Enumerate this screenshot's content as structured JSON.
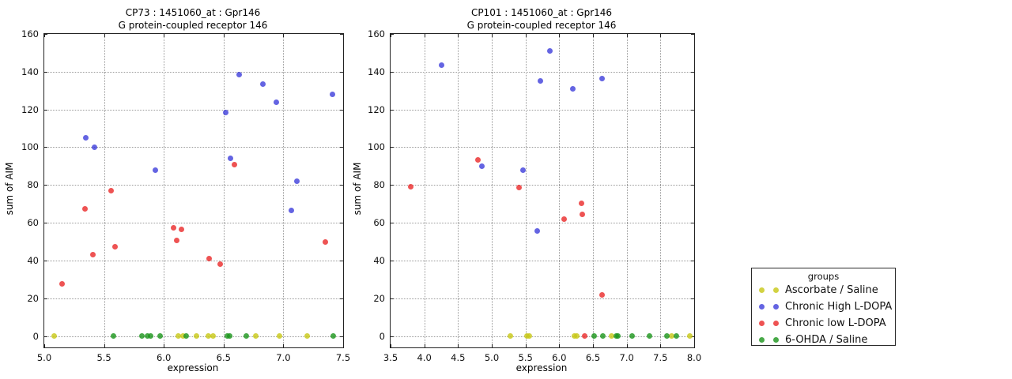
{
  "figure": {
    "background": "#ffffff"
  },
  "legend": {
    "title": "groups",
    "entries": [
      {
        "label": "Ascorbate / Saline",
        "color": "rgba(200,200,25,0.82)"
      },
      {
        "label": "Chronic High L-DOPA",
        "color": "rgba(40,40,215,0.72)"
      },
      {
        "label": "Chronic low L-DOPA",
        "color": "rgba(233,35,35,0.78)"
      },
      {
        "label": "6-OHDA / Saline",
        "color": "rgba(30,150,30,0.82)"
      }
    ]
  },
  "chart_data": [
    {
      "type": "scatter",
      "title_line1": "CP73 : 1451060_at : Gpr146",
      "title_line2": "G protein-coupled receptor 146",
      "xlabel": "expression",
      "ylabel": "sum of AIM",
      "xlim": [
        5.0,
        7.5
      ],
      "ylim": [
        0,
        160
      ],
      "xticks": [
        5.0,
        5.5,
        6.0,
        6.5,
        7.0,
        7.5
      ],
      "yticks": [
        0,
        20,
        40,
        60,
        80,
        100,
        120,
        140,
        160
      ],
      "grid": true,
      "series": [
        {
          "name": "Ascorbate / Saline",
          "color": "rgba(200,200,25,0.82)",
          "points": [
            [
              5.08,
              0
            ],
            [
              6.12,
              0
            ],
            [
              6.16,
              0
            ],
            [
              6.27,
              0
            ],
            [
              6.37,
              0
            ],
            [
              6.41,
              0
            ],
            [
              6.77,
              0
            ],
            [
              6.97,
              0
            ],
            [
              7.2,
              0
            ]
          ]
        },
        {
          "name": "Chronic High L-DOPA",
          "color": "rgba(40,40,215,0.72)",
          "points": [
            [
              5.35,
              105
            ],
            [
              5.42,
              100
            ],
            [
              5.93,
              88
            ],
            [
              6.52,
              118.5
            ],
            [
              6.56,
              94
            ],
            [
              6.63,
              138.5
            ],
            [
              6.83,
              133.5
            ],
            [
              6.94,
              124
            ],
            [
              7.07,
              66.5
            ],
            [
              7.11,
              82
            ],
            [
              7.41,
              128
            ]
          ]
        },
        {
          "name": "Chronic low L-DOPA",
          "color": "rgba(233,35,35,0.78)",
          "points": [
            [
              5.15,
              27.5
            ],
            [
              5.34,
              67.5
            ],
            [
              5.41,
              43
            ],
            [
              5.56,
              77
            ],
            [
              5.59,
              47.5
            ],
            [
              6.08,
              57.5
            ],
            [
              6.11,
              50.5
            ],
            [
              6.15,
              56.5
            ],
            [
              6.38,
              41
            ],
            [
              6.47,
              38
            ],
            [
              6.59,
              91
            ],
            [
              7.35,
              50
            ]
          ]
        },
        {
          "name": "6-OHDA / Saline",
          "color": "rgba(30,150,30,0.82)",
          "points": [
            [
              5.58,
              0
            ],
            [
              5.82,
              0
            ],
            [
              5.86,
              0
            ],
            [
              5.89,
              0
            ],
            [
              5.97,
              0
            ],
            [
              6.19,
              0
            ],
            [
              6.53,
              0
            ],
            [
              6.55,
              0
            ],
            [
              6.69,
              0
            ],
            [
              7.42,
              0
            ]
          ]
        }
      ]
    },
    {
      "type": "scatter",
      "title_line1": "CP101 : 1451060_at : Gpr146",
      "title_line2": "G protein-coupled receptor 146",
      "xlabel": "expression",
      "ylabel": "sum of AIM",
      "xlim": [
        3.5,
        8.0
      ],
      "ylim": [
        0,
        160
      ],
      "xticks": [
        3.5,
        4.0,
        4.5,
        5.0,
        5.5,
        6.0,
        6.5,
        7.0,
        7.5,
        8.0
      ],
      "yticks": [
        0,
        20,
        40,
        60,
        80,
        100,
        120,
        140,
        160
      ],
      "grid": true,
      "series": [
        {
          "name": "Ascorbate / Saline",
          "color": "rgba(200,200,25,0.82)",
          "points": [
            [
              5.27,
              0
            ],
            [
              5.52,
              0
            ],
            [
              5.56,
              0
            ],
            [
              6.22,
              0
            ],
            [
              6.26,
              0
            ],
            [
              6.78,
              0
            ],
            [
              7.67,
              0
            ],
            [
              7.94,
              0
            ]
          ]
        },
        {
          "name": "Chronic High L-DOPA",
          "color": "rgba(40,40,215,0.72)",
          "points": [
            [
              4.25,
              143.5
            ],
            [
              4.85,
              90
            ],
            [
              5.46,
              88
            ],
            [
              5.67,
              55.5
            ],
            [
              5.72,
              135
            ],
            [
              5.86,
              151
            ],
            [
              6.2,
              131
            ],
            [
              6.64,
              136.5
            ]
          ]
        },
        {
          "name": "Chronic low L-DOPA",
          "color": "rgba(233,35,35,0.78)",
          "points": [
            [
              3.8,
              79
            ],
            [
              4.8,
              93.5
            ],
            [
              5.41,
              78.5
            ],
            [
              6.07,
              62
            ],
            [
              6.33,
              70.5
            ],
            [
              6.34,
              64.5
            ],
            [
              6.38,
              0
            ],
            [
              6.64,
              22
            ]
          ]
        },
        {
          "name": "6-OHDA / Saline",
          "color": "rgba(30,150,30,0.82)",
          "points": [
            [
              6.52,
              0
            ],
            [
              6.65,
              0
            ],
            [
              6.84,
              0
            ],
            [
              6.87,
              0
            ],
            [
              7.08,
              0
            ],
            [
              7.34,
              0
            ],
            [
              7.6,
              0
            ],
            [
              7.74,
              0
            ]
          ]
        }
      ]
    }
  ]
}
